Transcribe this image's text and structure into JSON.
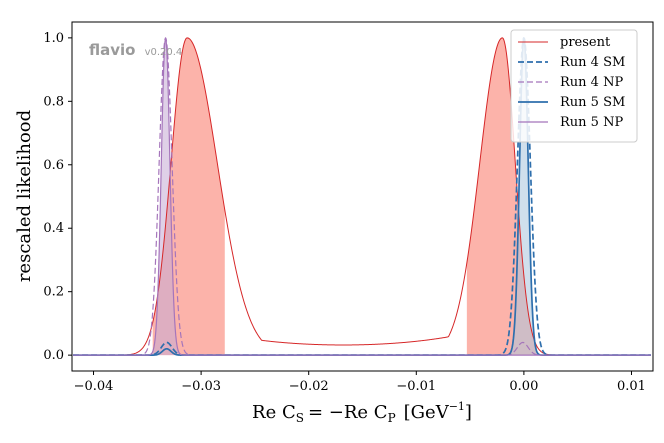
{
  "chart_data": {
    "type": "line",
    "title": "",
    "xlabel": "Re C_S = −Re C_P [GeV^−1]",
    "xlabel_parts": {
      "lhs": "Re C",
      "lhs_sub": "S",
      "eq": "= −Re C",
      "rhs_sub": "P",
      "unit": "[GeV",
      "unit_sup": "−1",
      "unit_close": "]"
    },
    "ylabel": "rescaled likelihood",
    "xlim": [
      -0.042,
      0.012
    ],
    "ylim": [
      -0.05,
      1.05
    ],
    "xticks": [
      -0.04,
      -0.03,
      -0.02,
      -0.01,
      0.0,
      0.01
    ],
    "xtick_labels": [
      "−0.04",
      "−0.03",
      "−0.02",
      "−0.01",
      "0.00",
      "0.01"
    ],
    "yticks": [
      0.0,
      0.2,
      0.4,
      0.6,
      0.8,
      1.0
    ],
    "ytick_labels": [
      "0.0",
      "0.2",
      "0.4",
      "0.6",
      "0.8",
      "1.0"
    ],
    "watermark": {
      "name": "flavio",
      "version": "v0.20.4"
    },
    "legend": {
      "placement": "top-right"
    },
    "series": [
      {
        "name": "present",
        "color": "#d62728",
        "dash": "solid",
        "width": 1.0,
        "peaks": [
          {
            "mu": -0.0313,
            "sigma_left": 0.0015,
            "sigma_right": 0.0028,
            "amp": 1.0
          },
          {
            "mu": -0.002,
            "sigma_left": 0.0021,
            "sigma_right": 0.0012,
            "amp": 1.0
          }
        ],
        "floor": 0.032,
        "floor_center": -0.0168,
        "floor_rise": 0.0082,
        "fill_ranges": [
          [
            -0.0345,
            -0.0278
          ],
          [
            -0.0053,
            0.0012
          ]
        ],
        "fill_color": "#fa8072",
        "fill_opacity": 0.6
      },
      {
        "name": "Run 4 SM",
        "color": "#2e6fad",
        "dash": "dashed",
        "width": 1.7,
        "peaks": [
          {
            "mu": 0.0,
            "sigma_left": 0.0006,
            "sigma_right": 0.0006,
            "amp": 1.0
          },
          {
            "mu": -0.0332,
            "sigma_left": 0.0005,
            "sigma_right": 0.0005,
            "amp": 0.04
          }
        ]
      },
      {
        "name": "Run 4 NP",
        "color": "#a575bb",
        "dash": "dashed",
        "width": 1.2,
        "peaks": [
          {
            "mu": -0.0333,
            "sigma_left": 0.0006,
            "sigma_right": 0.0006,
            "amp": 1.0
          },
          {
            "mu": -0.0001,
            "sigma_left": 0.0005,
            "sigma_right": 0.0005,
            "amp": 0.04
          }
        ]
      },
      {
        "name": "Run 5 SM",
        "color": "#2e6fad",
        "dash": "solid",
        "width": 1.7,
        "peaks": [
          {
            "mu": 0.0,
            "sigma_left": 0.0004,
            "sigma_right": 0.0004,
            "amp": 1.0
          },
          {
            "mu": -0.0332,
            "sigma_left": 0.0004,
            "sigma_right": 0.0004,
            "amp": 0.02
          }
        ],
        "fill_ranges": [
          [
            -0.0015,
            0.0015
          ]
        ],
        "fill_color": "#aac4dd",
        "fill_opacity": 0.55
      },
      {
        "name": "Run 5 NP",
        "color": "#a575bb",
        "dash": "solid",
        "width": 1.2,
        "peaks": [
          {
            "mu": -0.0333,
            "sigma_left": 0.0004,
            "sigma_right": 0.0004,
            "amp": 1.0
          }
        ],
        "fill_ranges": [
          [
            -0.0348,
            -0.0318
          ]
        ],
        "fill_color": "#c4a9d3",
        "fill_opacity": 0.55
      }
    ]
  }
}
